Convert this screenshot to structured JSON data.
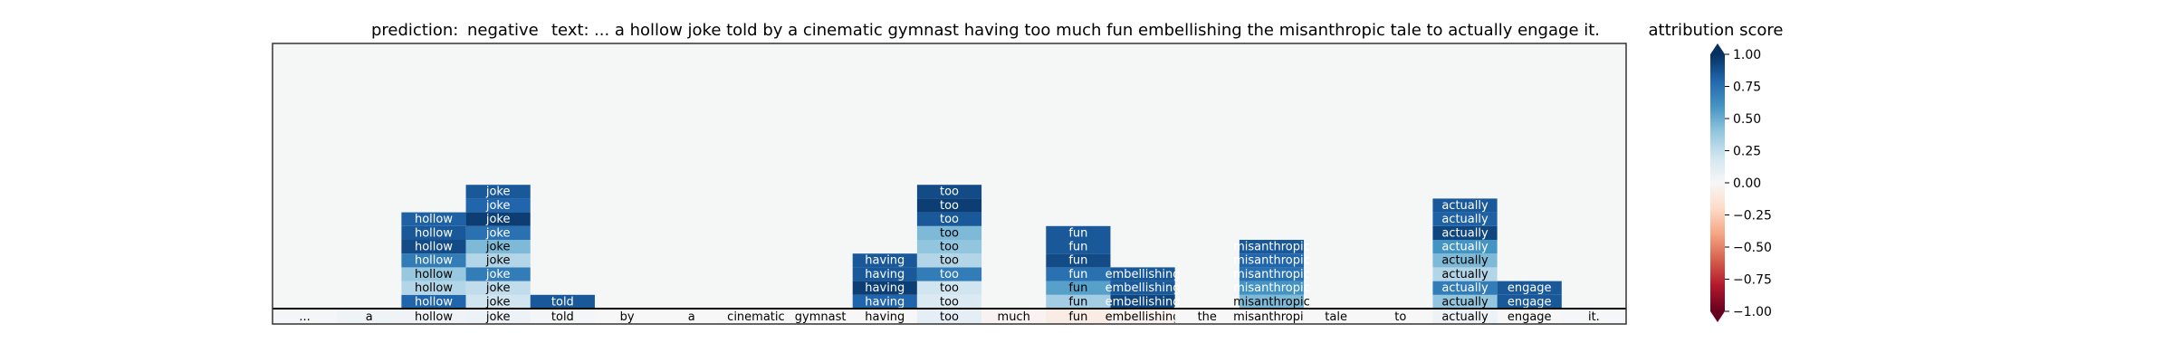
{
  "header": {
    "prediction_label": "prediction:",
    "prediction_value": "negative",
    "text_label": "text:",
    "text_value": "... a hollow joke told by a cinematic gymnast having too much fun embellishing the misanthropic tale to actually engage it."
  },
  "colorbar": {
    "title": "attribution score",
    "ticks": [
      "1.00",
      "0.75",
      "0.50",
      "0.25",
      "0.00",
      "−0.25",
      "−0.50",
      "−0.75",
      "−1.00"
    ],
    "tick_values": [
      1.0,
      0.75,
      0.5,
      0.25,
      0.0,
      -0.25,
      -0.5,
      -0.75,
      -1.0
    ],
    "colors": [
      "#67001f",
      "#b2182b",
      "#d6604d",
      "#f4a582",
      "#fddbc7",
      "#f7f7f7",
      "#d1e5f0",
      "#92c5de",
      "#4393c3",
      "#2166ac",
      "#053061"
    ]
  },
  "chart_data": {
    "type": "heatmap",
    "title": "",
    "background_color": "#f5f7f7",
    "tokens": [
      "...",
      "a",
      "hollow",
      "joke",
      "told",
      "by",
      "a",
      "cinematic",
      "gymnast",
      "having",
      "too",
      "much",
      "fun",
      "embellishing",
      "the",
      "misanthropic",
      "tale",
      "to",
      "actually",
      "engage",
      "it."
    ],
    "base_scores": [
      0.02,
      0.05,
      0.04,
      0.06,
      0.02,
      0.0,
      0.0,
      0.0,
      0.0,
      0.0,
      0.1,
      -0.03,
      -0.08,
      -0.04,
      0.0,
      0.0,
      0.0,
      0.0,
      0.06,
      0.0,
      0.01
    ],
    "columns": [
      {
        "token_index": 2,
        "label": "hollow",
        "scores": [
          0.8,
          0.3,
          0.38,
          0.7,
          0.9,
          0.85,
          0.82
        ]
      },
      {
        "token_index": 3,
        "label": "joke",
        "scores": [
          0.2,
          0.25,
          0.7,
          0.3,
          0.45,
          0.75,
          0.95,
          0.8,
          0.85
        ]
      },
      {
        "token_index": 4,
        "label": "told",
        "scores": [
          0.85
        ]
      },
      {
        "token_index": 9,
        "label": "having",
        "scores": [
          0.8,
          0.95,
          0.85,
          0.85
        ]
      },
      {
        "token_index": 10,
        "label": "too",
        "scores": [
          0.15,
          0.2,
          0.7,
          0.3,
          0.4,
          0.45,
          0.85,
          0.95,
          0.9
        ]
      },
      {
        "token_index": 12,
        "label": "fun",
        "scores": [
          0.35,
          0.55,
          0.75,
          0.9,
          0.85,
          0.85
        ]
      },
      {
        "token_index": 13,
        "label": "embellishing",
        "scores": [
          0.92,
          0.85,
          0.85
        ]
      },
      {
        "token_index": 15,
        "label": "misanthropic",
        "scores": [
          0.45,
          0.6,
          0.75,
          0.8,
          0.85
        ]
      },
      {
        "token_index": 18,
        "label": "actually",
        "scores": [
          0.4,
          0.7,
          0.3,
          0.45,
          0.6,
          0.92,
          0.82,
          0.85
        ]
      },
      {
        "token_index": 19,
        "label": "engage",
        "scores": [
          0.85,
          0.85
        ]
      }
    ],
    "color_range": [
      -1.0,
      1.0
    ]
  }
}
